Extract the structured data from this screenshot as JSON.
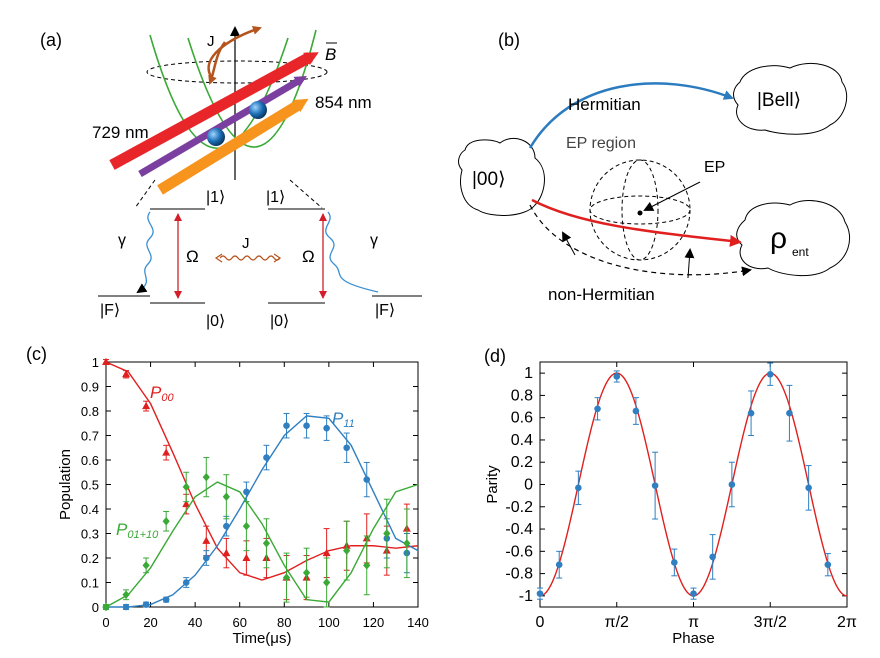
{
  "panels": {
    "a": {
      "label": "(a)",
      "laser_729": "729 nm",
      "laser_854": "854 nm",
      "coupling_J": "J",
      "field_B": "B",
      "ket1_left": "|1⟩",
      "ket1_right": "|1⟩",
      "ket0_left": "|0⟩",
      "ket0_right": "|0⟩",
      "ketF_left": "|F⟩",
      "ketF_right": "|F⟩",
      "gamma_left": "γ",
      "gamma_right": "γ",
      "omega_left": "Ω",
      "omega_right": "Ω",
      "j_between": "J",
      "colors": {
        "laser_red": "#e8262a",
        "laser_purple": "#7b3fa0",
        "laser_orange": "#f7941d",
        "trap": "#3aa935",
        "coupling": "#b5541c",
        "transition": "#d21f2b",
        "decay": "#3a8fd0",
        "ion": "#1c6fb5"
      }
    },
    "b": {
      "label": "(b)",
      "start_state": "|00⟩",
      "bell_state": "|Bell⟩",
      "rho_main": "ρ",
      "rho_sub": "ent",
      "hermitian_label": "Hermitian",
      "non_hermitian_label": "non-Hermitian",
      "ep_region_label": "EP region",
      "ep_label": "EP",
      "colors": {
        "hermitian": "#2b7bbf",
        "non_hermitian": "#e0201f"
      }
    },
    "c": {
      "label": "(c)"
    },
    "d": {
      "label": "(d)"
    }
  },
  "chart_data": [
    {
      "type": "line",
      "panel": "c",
      "xlabel": "Time(μs)",
      "ylabel": "Population",
      "xlim": [
        0,
        140
      ],
      "ylim": [
        0,
        1
      ],
      "x_ticks": [
        0,
        20,
        40,
        60,
        80,
        100,
        120,
        140
      ],
      "y_ticks": [
        0,
        0.1,
        0.2,
        0.3,
        0.4,
        0.5,
        0.6,
        0.7,
        0.8,
        0.9,
        1
      ],
      "grid": false,
      "legend": "inline labels",
      "series": [
        {
          "name": "P00",
          "label_main": "P",
          "label_sub": "00",
          "color": "#e0201f",
          "marker": "triangle",
          "points": [
            [
              0,
              1.0
            ],
            [
              9,
              0.95
            ],
            [
              18,
              0.82
            ],
            [
              27,
              0.63
            ],
            [
              36,
              0.42
            ],
            [
              45,
              0.27
            ],
            [
              54,
              0.22
            ],
            [
              63,
              0.2
            ],
            [
              72,
              0.2
            ],
            [
              81,
              0.12
            ],
            [
              90,
              0.12
            ],
            [
              99,
              0.22
            ],
            [
              108,
              0.25
            ],
            [
              117,
              0.28
            ],
            [
              126,
              0.23
            ],
            [
              135,
              0.32
            ]
          ],
          "errors": [
            0.01,
            0.015,
            0.02,
            0.03,
            0.04,
            0.06,
            0.06,
            0.07,
            0.08,
            0.09,
            0.09,
            0.1,
            0.1,
            0.1,
            0.1,
            0.1
          ],
          "fit": [
            [
              0,
              1.0
            ],
            [
              10,
              0.96
            ],
            [
              20,
              0.83
            ],
            [
              30,
              0.63
            ],
            [
              40,
              0.42
            ],
            [
              50,
              0.24
            ],
            [
              60,
              0.14
            ],
            [
              70,
              0.11
            ],
            [
              80,
              0.14
            ],
            [
              90,
              0.19
            ],
            [
              100,
              0.23
            ],
            [
              110,
              0.25
            ],
            [
              120,
              0.25
            ],
            [
              130,
              0.24
            ],
            [
              140,
              0.25
            ]
          ]
        },
        {
          "name": "P11",
          "label_main": "P",
          "label_sub": "11",
          "color": "#2f7fc1",
          "marker": "circle",
          "points": [
            [
              0,
              0.0
            ],
            [
              9,
              0.0
            ],
            [
              18,
              0.01
            ],
            [
              27,
              0.03
            ],
            [
              36,
              0.1
            ],
            [
              45,
              0.2
            ],
            [
              54,
              0.33
            ],
            [
              63,
              0.47
            ],
            [
              72,
              0.61
            ],
            [
              81,
              0.74
            ],
            [
              90,
              0.74
            ],
            [
              99,
              0.73
            ],
            [
              108,
              0.65
            ],
            [
              117,
              0.52
            ],
            [
              126,
              0.28
            ],
            [
              135,
              0.22
            ]
          ],
          "errors": [
            0.01,
            0.01,
            0.01,
            0.01,
            0.02,
            0.03,
            0.04,
            0.04,
            0.05,
            0.05,
            0.05,
            0.05,
            0.06,
            0.07,
            0.08,
            0.08
          ],
          "fit": [
            [
              0,
              0.0
            ],
            [
              10,
              0.0
            ],
            [
              20,
              0.01
            ],
            [
              30,
              0.05
            ],
            [
              40,
              0.13
            ],
            [
              50,
              0.25
            ],
            [
              60,
              0.4
            ],
            [
              70,
              0.56
            ],
            [
              80,
              0.7
            ],
            [
              90,
              0.78
            ],
            [
              100,
              0.77
            ],
            [
              110,
              0.66
            ],
            [
              120,
              0.47
            ],
            [
              130,
              0.28
            ],
            [
              140,
              0.23
            ]
          ]
        },
        {
          "name": "P01+10",
          "label_main": "P",
          "label_sub": "01+10",
          "color": "#3aa935",
          "marker": "diamond",
          "points": [
            [
              0,
              0.0
            ],
            [
              9,
              0.05
            ],
            [
              18,
              0.17
            ],
            [
              27,
              0.35
            ],
            [
              36,
              0.49
            ],
            [
              45,
              0.53
            ],
            [
              54,
              0.45
            ],
            [
              63,
              0.33
            ],
            [
              72,
              0.26
            ],
            [
              81,
              0.12
            ],
            [
              90,
              0.14
            ],
            [
              99,
              0.1
            ],
            [
              108,
              0.23
            ],
            [
              117,
              0.17
            ],
            [
              126,
              0.3
            ],
            [
              135,
              0.26
            ]
          ],
          "errors": [
            0.01,
            0.02,
            0.03,
            0.04,
            0.06,
            0.08,
            0.09,
            0.1,
            0.1,
            0.1,
            0.1,
            0.1,
            0.12,
            0.12,
            0.14,
            0.14
          ],
          "fit": [
            [
              0,
              0.0
            ],
            [
              10,
              0.05
            ],
            [
              20,
              0.16
            ],
            [
              30,
              0.31
            ],
            [
              40,
              0.45
            ],
            [
              50,
              0.51
            ],
            [
              60,
              0.47
            ],
            [
              70,
              0.34
            ],
            [
              80,
              0.17
            ],
            [
              90,
              0.03
            ],
            [
              100,
              0.02
            ],
            [
              110,
              0.14
            ],
            [
              120,
              0.32
            ],
            [
              130,
              0.47
            ],
            [
              140,
              0.5
            ]
          ]
        }
      ]
    },
    {
      "type": "line",
      "panel": "d",
      "xlabel": "Phase",
      "ylabel": "Parity",
      "xlim": [
        0,
        6.2832
      ],
      "ylim": [
        -1.1,
        1.1
      ],
      "x_ticks": [
        0,
        1.5708,
        3.1416,
        4.7124,
        6.2832
      ],
      "x_tick_labels": [
        "0",
        "π/2",
        "π",
        "3π/2",
        "2π"
      ],
      "y_ticks": [
        -1,
        -0.8,
        -0.6,
        -0.4,
        -0.2,
        0,
        0.2,
        0.4,
        0.6,
        0.8,
        1
      ],
      "grid": false,
      "legend": "none",
      "series": [
        {
          "color": "#2f7fc1",
          "marker": "circle",
          "points": [
            [
              0,
              -0.98
            ],
            [
              0.393,
              -0.72
            ],
            [
              0.785,
              -0.03
            ],
            [
              1.178,
              0.68
            ],
            [
              1.571,
              0.97
            ],
            [
              1.963,
              0.66
            ],
            [
              2.356,
              -0.01
            ],
            [
              2.749,
              -0.7
            ],
            [
              3.142,
              -0.98
            ],
            [
              3.534,
              -0.65
            ],
            [
              3.927,
              0.0
            ],
            [
              4.32,
              0.64
            ],
            [
              4.712,
              0.99
            ],
            [
              5.105,
              0.64
            ],
            [
              5.498,
              -0.03
            ],
            [
              5.891,
              -0.72
            ]
          ],
          "errors": [
            0.05,
            0.12,
            0.15,
            0.1,
            0.05,
            0.12,
            0.3,
            0.12,
            0.05,
            0.2,
            0.2,
            0.2,
            0.1,
            0.25,
            0.2,
            0.1
          ],
          "fit_color": "#e0201f",
          "fit_function": "-cos(2*phase)"
        }
      ]
    }
  ]
}
